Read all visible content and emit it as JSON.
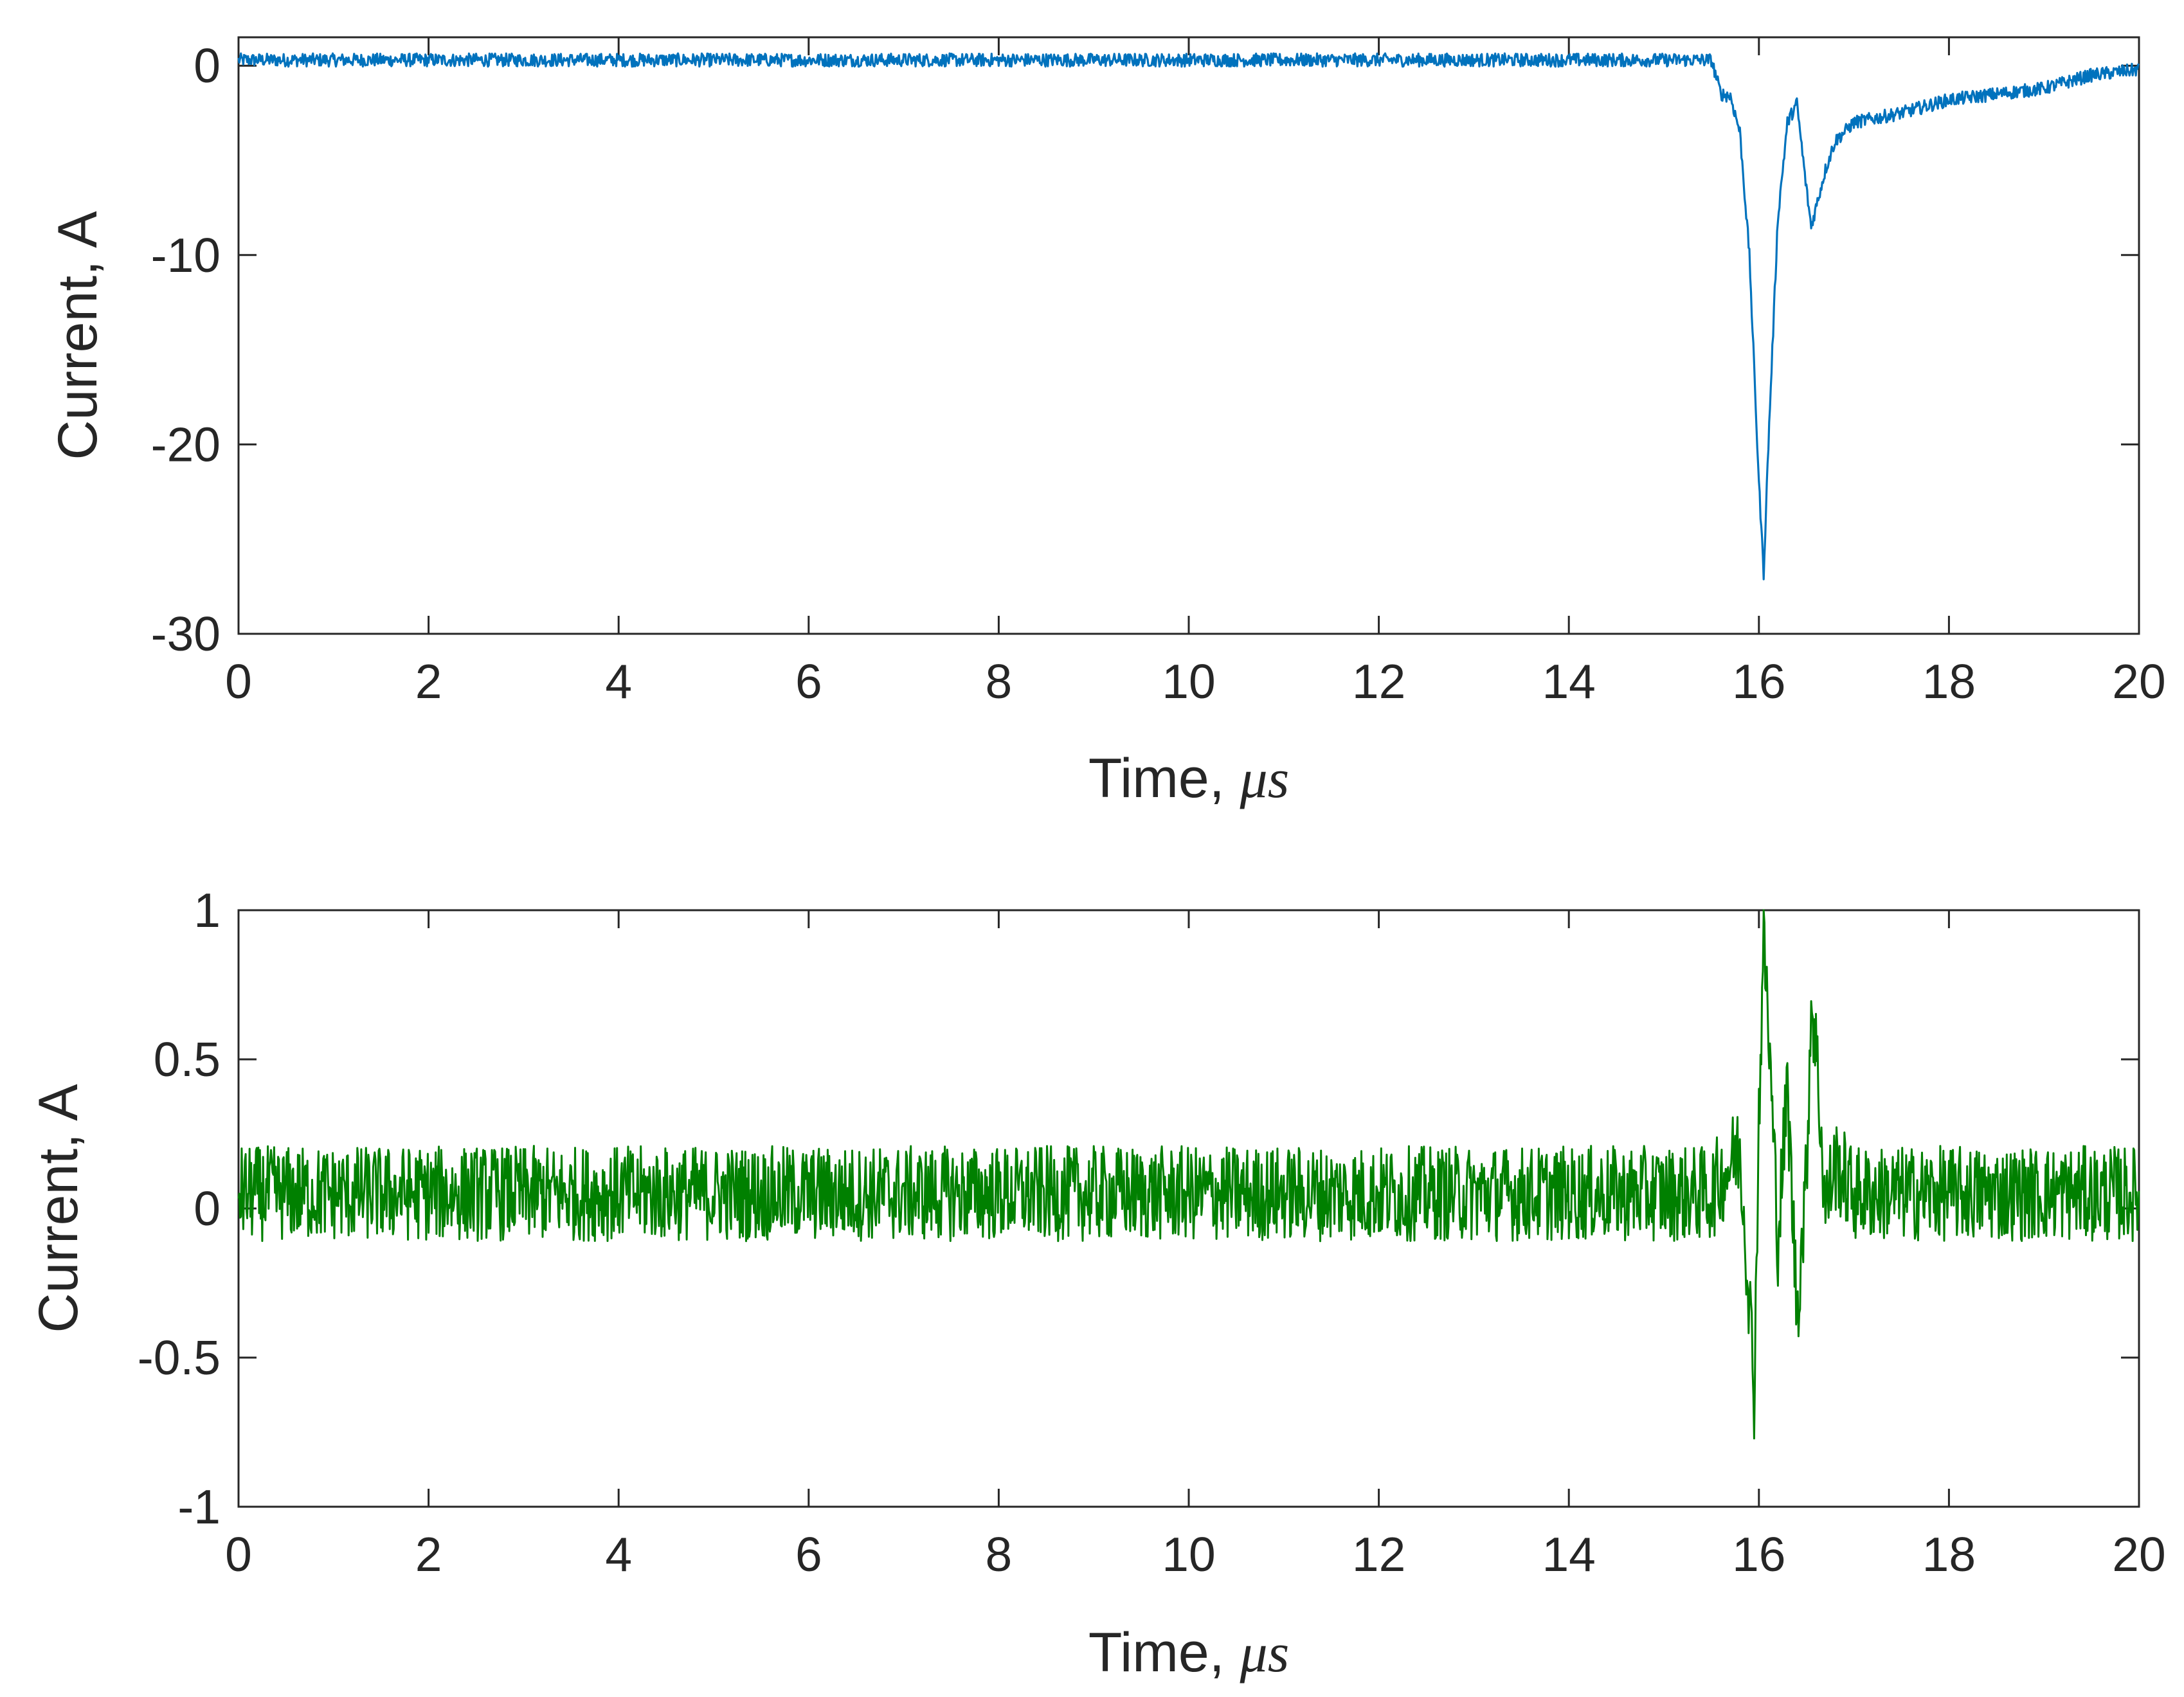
{
  "chart_data": [
    {
      "type": "line",
      "title": "",
      "xlabel": "Time, ",
      "xlabel_unit": "μs",
      "ylabel": "Current, A",
      "xlim": [
        0,
        20
      ],
      "ylim": [
        -30,
        1.5
      ],
      "xticks": [
        0,
        2,
        4,
        6,
        8,
        10,
        12,
        14,
        16,
        18,
        20
      ],
      "yticks": [
        0,
        -10,
        -20,
        -30
      ],
      "grid": false,
      "legend": "none",
      "color": "#0072BD",
      "noise_amplitude": 0.35,
      "series": [
        {
          "x": [
            0,
            15.5,
            15.6,
            15.7,
            15.8,
            15.9,
            16.0,
            16.05,
            16.1,
            16.2,
            16.3,
            16.4,
            16.5,
            16.55,
            16.6,
            16.7,
            16.8,
            17.0,
            17.5,
            18.0,
            18.5,
            19.0,
            19.5,
            20.0
          ],
          "values": [
            0.3,
            0.3,
            -1.5,
            -1.6,
            -3.5,
            -10,
            -22,
            -26.8,
            -20,
            -8,
            -3,
            -2,
            -6.5,
            -8.5,
            -7.5,
            -5.5,
            -4,
            -3,
            -2.5,
            -1.8,
            -1.5,
            -1.2,
            -0.5,
            -0.2
          ]
        }
      ]
    },
    {
      "type": "line",
      "title": "",
      "xlabel": "Time, ",
      "xlabel_unit": "μs",
      "ylabel": "Current, A",
      "xlim": [
        0,
        20
      ],
      "ylim": [
        -1,
        1
      ],
      "xticks": [
        0,
        2,
        4,
        6,
        8,
        10,
        12,
        14,
        16,
        18,
        20
      ],
      "yticks": [
        1,
        0.5,
        0,
        -0.5,
        -1
      ],
      "grid": false,
      "legend": "none",
      "color": "#008000",
      "noise_amplitude": 0.16,
      "series": [
        {
          "x": [
            0,
            15.5,
            15.8,
            15.9,
            15.95,
            16.0,
            16.05,
            16.1,
            16.2,
            16.3,
            16.4,
            16.5,
            16.55,
            16.6,
            16.7,
            16.8,
            17.0,
            20.0
          ],
          "values": [
            0.05,
            0.05,
            0.2,
            -0.3,
            -0.62,
            0.3,
            0.93,
            0.6,
            -0.1,
            0.4,
            -0.35,
            0.1,
            0.7,
            0.55,
            0.0,
            0.15,
            0.05,
            0.05
          ]
        }
      ]
    }
  ]
}
